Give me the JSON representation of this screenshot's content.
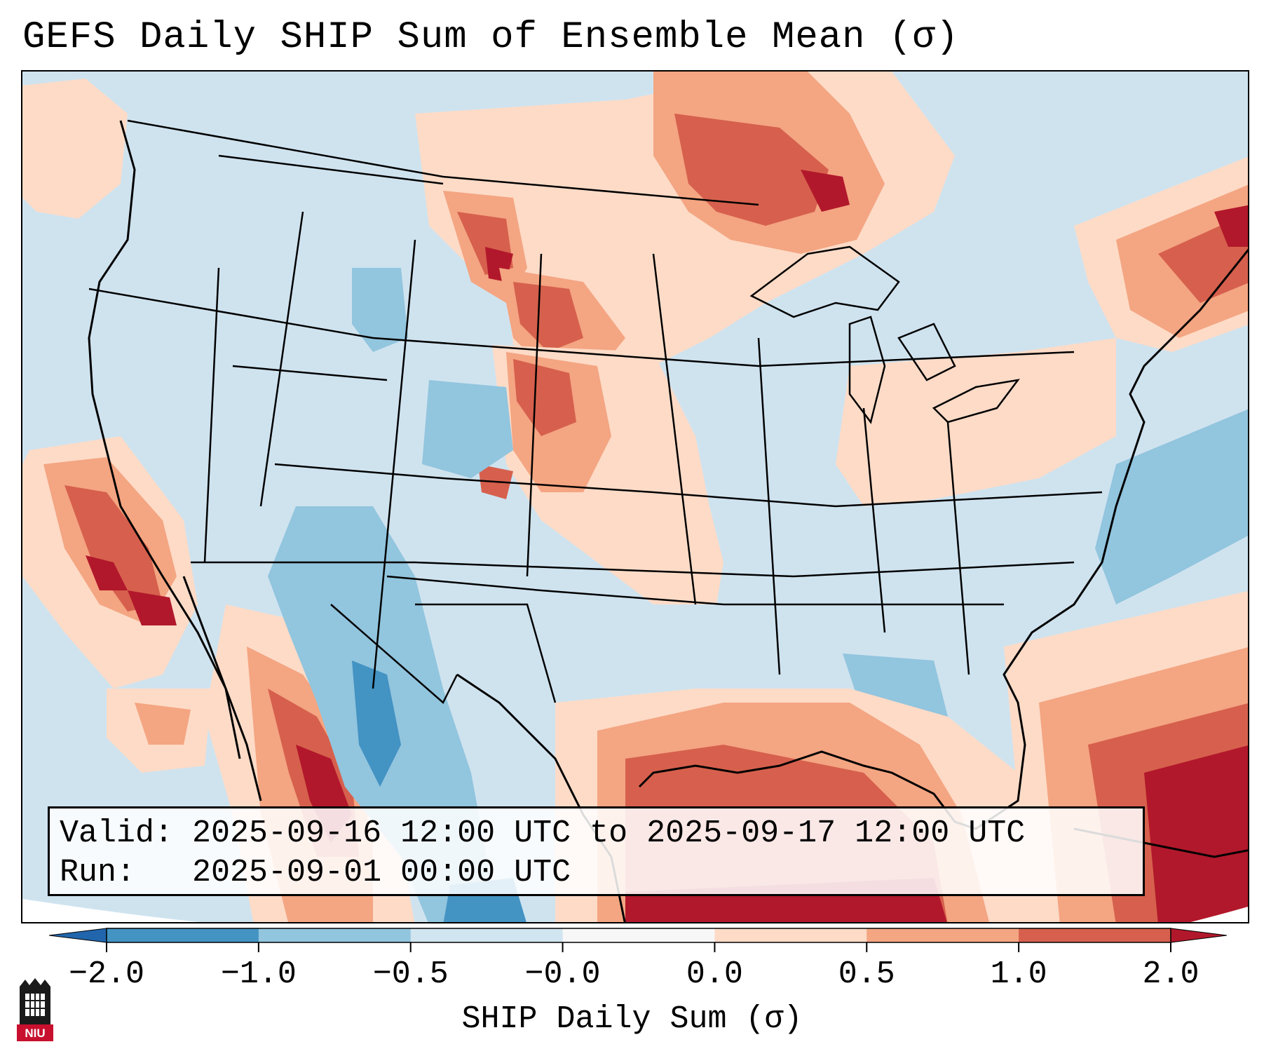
{
  "title": "GEFS Daily SHIP Sum of Ensemble Mean (σ)",
  "info": {
    "valid_line": "Valid: 2025-09-16 12:00 UTC to 2025-09-17 12:00 UTC",
    "run_line": "Run:   2025-09-01 00:00 UTC"
  },
  "colorbar": {
    "label": "SHIP Daily Sum (σ)",
    "ticks": [
      "−2.0",
      "−1.0",
      "−0.5",
      "−0.0",
      "0.0",
      "0.5",
      "1.0",
      "2.0"
    ],
    "bins": [
      {
        "range": "< -2.0",
        "color": "#2166ac"
      },
      {
        "range": "-2.0 to -1.0",
        "color": "#4393c3"
      },
      {
        "range": "-1.0 to -0.5",
        "color": "#92c5de"
      },
      {
        "range": "-0.5 to -0.0",
        "color": "#d1e5f0"
      },
      {
        "range": "-0.0 to 0.0",
        "color": "#f7f7f7"
      },
      {
        "range": "0.0 to 0.5",
        "color": "#fddbc7"
      },
      {
        "range": "0.5 to 1.0",
        "color": "#f4a582"
      },
      {
        "range": "1.0 to 2.0",
        "color": "#d6604d"
      },
      {
        "range": "> 2.0",
        "color": "#b2182b"
      }
    ]
  },
  "logo": {
    "text": "NIU",
    "icon": "university-tower-logo",
    "color": "#c8102e"
  }
}
